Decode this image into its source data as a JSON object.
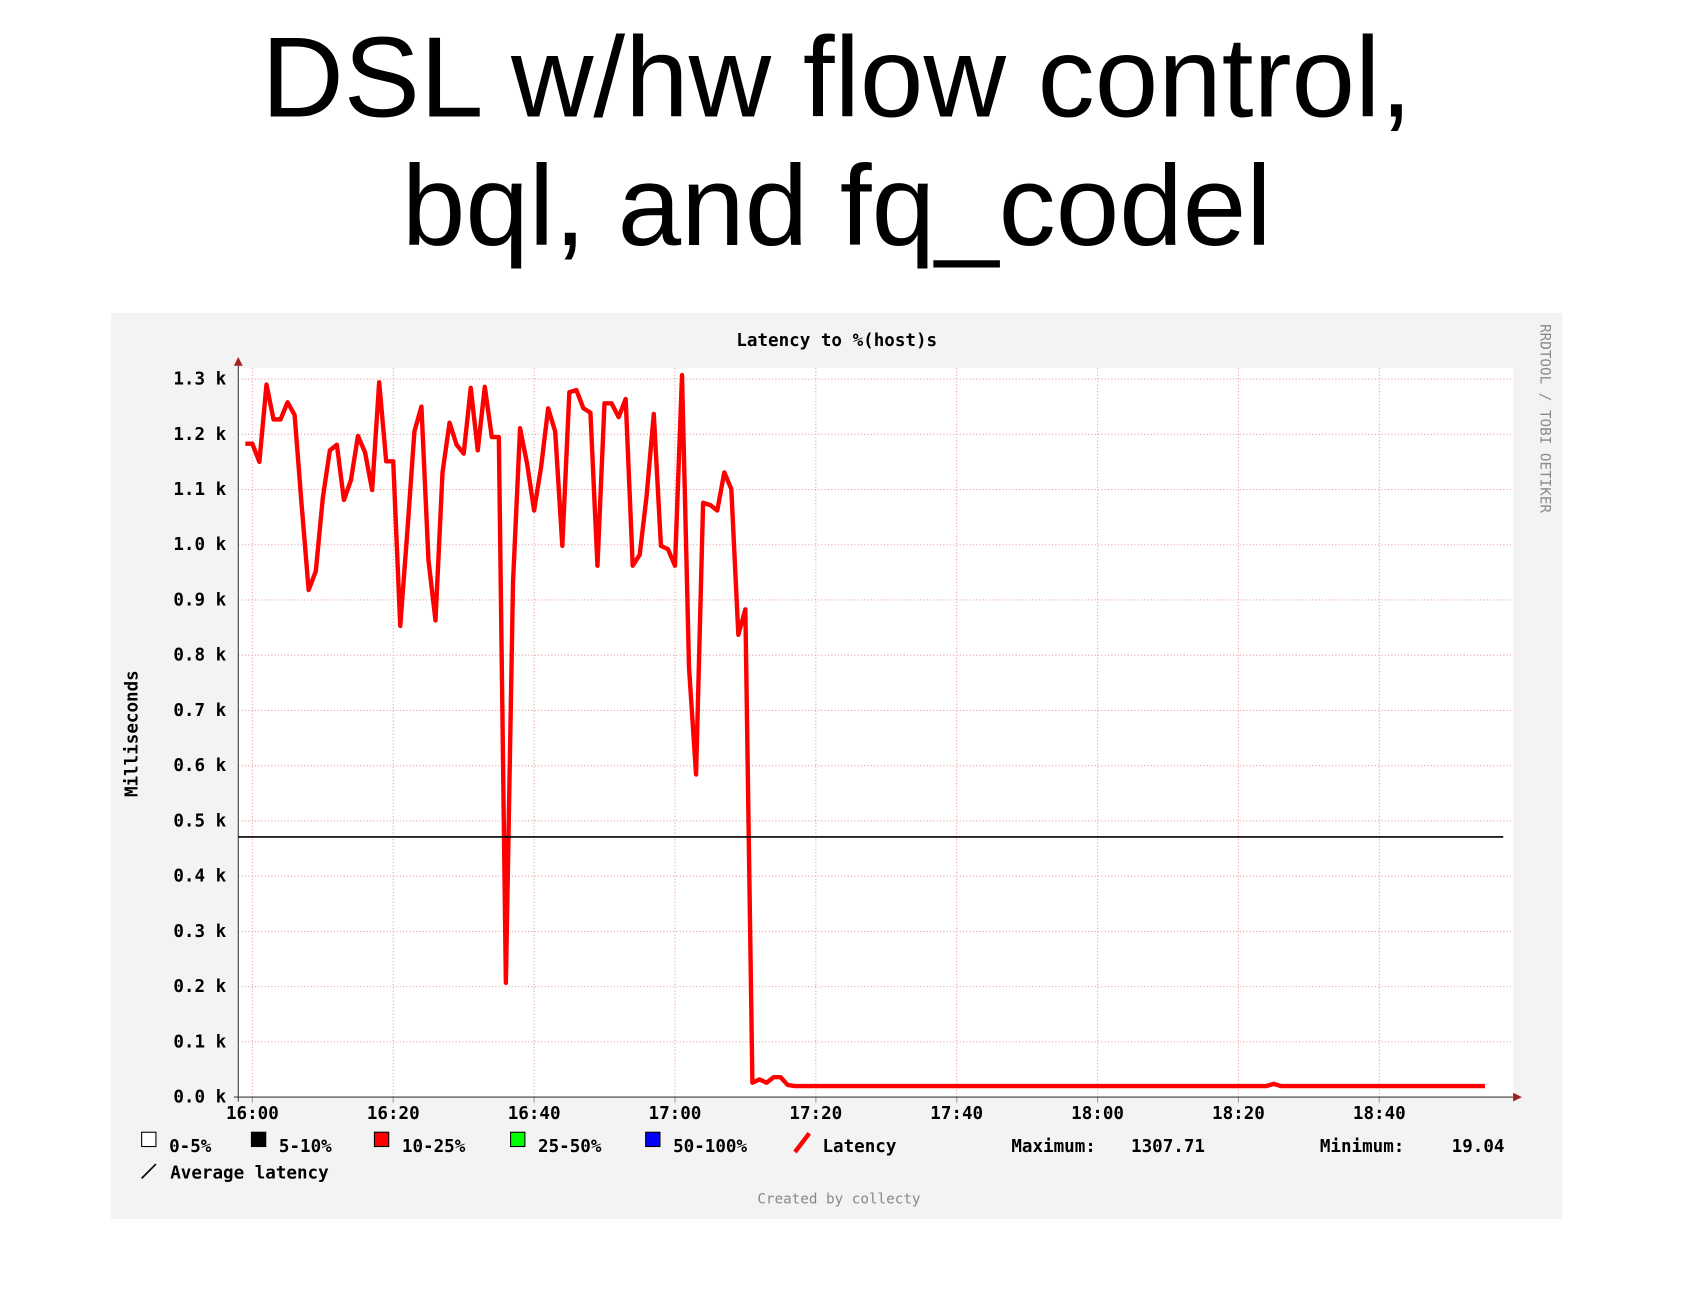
{
  "slide_title": [
    "DSL w/hw flow control,",
    "bql, and fq_codel"
  ],
  "chart_data": {
    "type": "line",
    "title": "Latency to %(host)s",
    "y_label": "Milliseconds",
    "x": [
      "15:59",
      "16:00",
      "16:01",
      "16:02",
      "16:03",
      "16:04",
      "16:05",
      "16:06",
      "16:07",
      "16:08",
      "16:09",
      "16:10",
      "16:11",
      "16:12",
      "16:13",
      "16:14",
      "16:15",
      "16:16",
      "16:17",
      "16:18",
      "16:19",
      "16:20",
      "16:21",
      "16:22",
      "16:23",
      "16:24",
      "16:25",
      "16:26",
      "16:27",
      "16:28",
      "16:29",
      "16:30",
      "16:31",
      "16:32",
      "16:33",
      "16:34",
      "16:35",
      "16:36",
      "16:37",
      "16:38",
      "16:39",
      "16:40",
      "16:41",
      "16:42",
      "16:43",
      "16:44",
      "16:45",
      "16:46",
      "16:47",
      "16:48",
      "16:49",
      "16:50",
      "16:51",
      "16:52",
      "16:53",
      "16:54",
      "16:55",
      "16:56",
      "16:57",
      "16:58",
      "16:59",
      "17:00",
      "17:01",
      "17:02",
      "17:03",
      "17:04",
      "17:05",
      "17:06",
      "17:07",
      "17:08",
      "17:09",
      "17:10",
      "17:11",
      "17:12",
      "17:13",
      "17:14",
      "17:15",
      "17:16",
      "17:17",
      "18:24",
      "18:25",
      "18:26",
      "18:55"
    ],
    "series": [
      {
        "name": "Latency",
        "color": "#ff0000",
        "values": [
          1183,
          1183,
          1150,
          1290,
          1227,
          1227,
          1258,
          1235,
          1072,
          918,
          952,
          1085,
          1171,
          1181,
          1081,
          1117,
          1197,
          1167,
          1099,
          1294,
          1151,
          1151,
          853,
          1022,
          1205,
          1250,
          972,
          863,
          1131,
          1221,
          1181,
          1165,
          1284,
          1171,
          1286,
          1195,
          1195,
          207,
          932,
          1211,
          1147,
          1062,
          1141,
          1247,
          1205,
          998,
          1276,
          1280,
          1247,
          1239,
          962,
          1256,
          1256,
          1231,
          1264,
          962,
          982,
          1091,
          1237,
          998,
          992,
          962,
          1307,
          777,
          584,
          1076,
          1072,
          1062,
          1131,
          1101,
          837,
          883,
          26,
          32,
          26,
          36,
          36,
          22,
          20,
          20,
          24,
          20,
          20
        ]
      }
    ],
    "average": {
      "name": "Average latency",
      "color": "#000000",
      "value": 471
    },
    "legend_items": [
      {
        "name": "0-5%",
        "color": "#ffffff"
      },
      {
        "name": "5-10%",
        "color": "#000000"
      },
      {
        "name": "10-25%",
        "color": "#ff0000"
      },
      {
        "name": "25-50%",
        "color": "#00ff00"
      },
      {
        "name": "50-100%",
        "color": "#0000ff"
      }
    ],
    "maximum": {
      "label": "Maximum:",
      "value": 1307.71
    },
    "minimum": {
      "label": "Minimum:",
      "value": 19.04
    },
    "credit": "Created by collecty",
    "watermark": "RRDTOOL / TOBI OETIKER",
    "xlim": [
      "15:58",
      "18:59"
    ],
    "xticks": [
      "16:00",
      "16:20",
      "16:40",
      "17:00",
      "17:20",
      "17:40",
      "18:00",
      "18:20",
      "18:40"
    ],
    "ylim": [
      0,
      1320
    ],
    "yticks": [
      {
        "value": 0,
        "label": "0.0 k"
      },
      {
        "value": 100,
        "label": "0.1 k"
      },
      {
        "value": 200,
        "label": "0.2 k"
      },
      {
        "value": 300,
        "label": "0.3 k"
      },
      {
        "value": 400,
        "label": "0.4 k"
      },
      {
        "value": 500,
        "label": "0.5 k"
      },
      {
        "value": 600,
        "label": "0.6 k"
      },
      {
        "value": 700,
        "label": "0.7 k"
      },
      {
        "value": 800,
        "label": "0.8 k"
      },
      {
        "value": 900,
        "label": "0.9 k"
      },
      {
        "value": 1000,
        "label": "1.0 k"
      },
      {
        "value": 1100,
        "label": "1.1 k"
      },
      {
        "value": 1200,
        "label": "1.2 k"
      },
      {
        "value": 1300,
        "label": "1.3 k"
      }
    ],
    "grid": true
  }
}
